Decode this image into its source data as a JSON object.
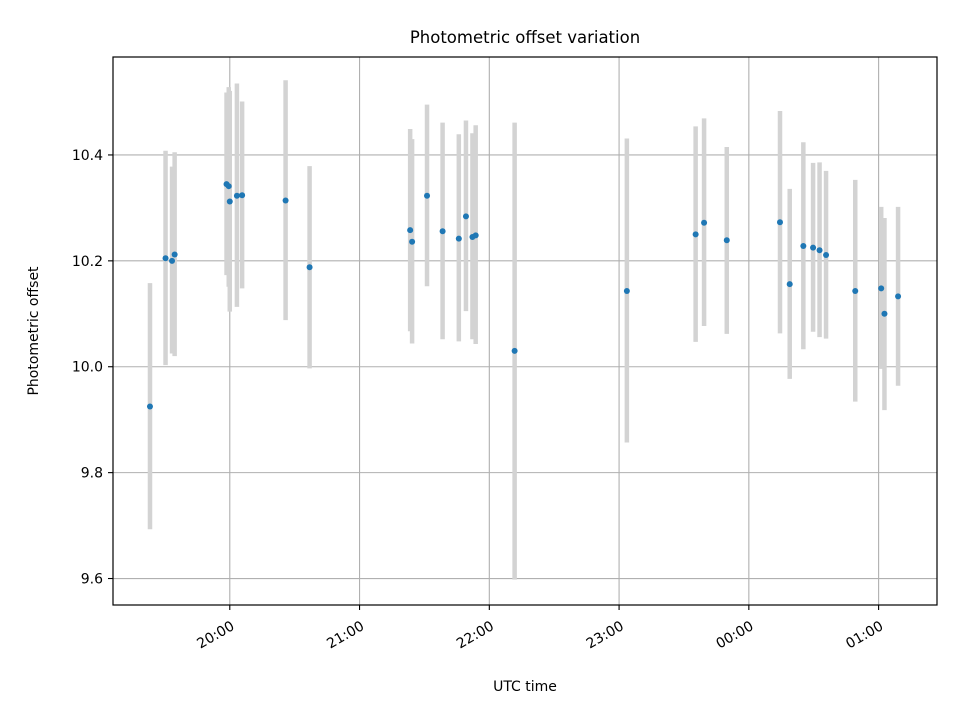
{
  "chart_data": {
    "type": "scatter",
    "title": "Photometric offset variation",
    "xlabel": "UTC time",
    "ylabel": "Photometric offset",
    "xlim": [
      -0.9,
      5.45
    ],
    "ylim": [
      9.55,
      10.585
    ],
    "grid": true,
    "x_ticks": [
      {
        "value": 0,
        "label": "20:00"
      },
      {
        "value": 1,
        "label": "21:00"
      },
      {
        "value": 2,
        "label": "22:00"
      },
      {
        "value": 3,
        "label": "23:00"
      },
      {
        "value": 4,
        "label": "00:00"
      },
      {
        "value": 5,
        "label": "01:00"
      }
    ],
    "y_ticks": [
      {
        "value": 9.6,
        "label": "9.6"
      },
      {
        "value": 9.8,
        "label": "9.8"
      },
      {
        "value": 10.0,
        "label": "10.0"
      },
      {
        "value": 10.2,
        "label": "10.2"
      },
      {
        "value": 10.4,
        "label": "10.4"
      }
    ],
    "x_note": "x values are hours relative to 20:00 UTC",
    "marker_color": "#1f77b4",
    "errorbar_color": "#d3d3d3",
    "points": [
      {
        "x": -0.615,
        "y": 9.925,
        "low": 9.693,
        "high": 10.158
      },
      {
        "x": -0.495,
        "y": 10.205,
        "low": 10.003,
        "high": 10.408
      },
      {
        "x": -0.445,
        "y": 10.2,
        "low": 10.025,
        "high": 10.378
      },
      {
        "x": -0.425,
        "y": 10.212,
        "low": 10.02,
        "high": 10.405
      },
      {
        "x": -0.025,
        "y": 10.345,
        "low": 10.173,
        "high": 10.518
      },
      {
        "x": -0.008,
        "y": 10.341,
        "low": 10.151,
        "high": 10.528
      },
      {
        "x": 0.0,
        "y": 10.312,
        "low": 10.104,
        "high": 10.521
      },
      {
        "x": 0.055,
        "y": 10.323,
        "low": 10.113,
        "high": 10.535
      },
      {
        "x": 0.095,
        "y": 10.324,
        "low": 10.148,
        "high": 10.501
      },
      {
        "x": 0.43,
        "y": 10.314,
        "low": 10.088,
        "high": 10.541
      },
      {
        "x": 0.615,
        "y": 10.188,
        "low": 9.997,
        "high": 10.379
      },
      {
        "x": 1.39,
        "y": 10.258,
        "low": 10.067,
        "high": 10.449
      },
      {
        "x": 1.405,
        "y": 10.236,
        "low": 10.044,
        "high": 10.43
      },
      {
        "x": 1.52,
        "y": 10.323,
        "low": 10.152,
        "high": 10.495
      },
      {
        "x": 1.64,
        "y": 10.256,
        "low": 10.052,
        "high": 10.461
      },
      {
        "x": 1.765,
        "y": 10.242,
        "low": 10.048,
        "high": 10.439
      },
      {
        "x": 1.82,
        "y": 10.284,
        "low": 10.105,
        "high": 10.465
      },
      {
        "x": 1.87,
        "y": 10.245,
        "low": 10.052,
        "high": 10.441
      },
      {
        "x": 1.895,
        "y": 10.248,
        "low": 10.043,
        "high": 10.456
      },
      {
        "x": 2.195,
        "y": 10.03,
        "low": 9.598,
        "high": 10.461
      },
      {
        "x": 3.06,
        "y": 10.143,
        "low": 9.857,
        "high": 10.431
      },
      {
        "x": 3.59,
        "y": 10.25,
        "low": 10.047,
        "high": 10.454
      },
      {
        "x": 3.655,
        "y": 10.272,
        "low": 10.077,
        "high": 10.469
      },
      {
        "x": 3.83,
        "y": 10.239,
        "low": 10.062,
        "high": 10.415
      },
      {
        "x": 4.24,
        "y": 10.273,
        "low": 10.063,
        "high": 10.483
      },
      {
        "x": 4.315,
        "y": 10.156,
        "low": 9.977,
        "high": 10.336
      },
      {
        "x": 4.42,
        "y": 10.228,
        "low": 10.033,
        "high": 10.424
      },
      {
        "x": 4.495,
        "y": 10.225,
        "low": 10.066,
        "high": 10.385
      },
      {
        "x": 4.545,
        "y": 10.22,
        "low": 10.056,
        "high": 10.386
      },
      {
        "x": 4.595,
        "y": 10.211,
        "low": 10.053,
        "high": 10.37
      },
      {
        "x": 4.82,
        "y": 10.143,
        "low": 9.934,
        "high": 10.353
      },
      {
        "x": 5.02,
        "y": 10.148,
        "low": 9.996,
        "high": 10.302
      },
      {
        "x": 5.045,
        "y": 10.1,
        "low": 9.918,
        "high": 10.281
      },
      {
        "x": 5.15,
        "y": 10.133,
        "low": 9.964,
        "high": 10.302
      }
    ]
  }
}
